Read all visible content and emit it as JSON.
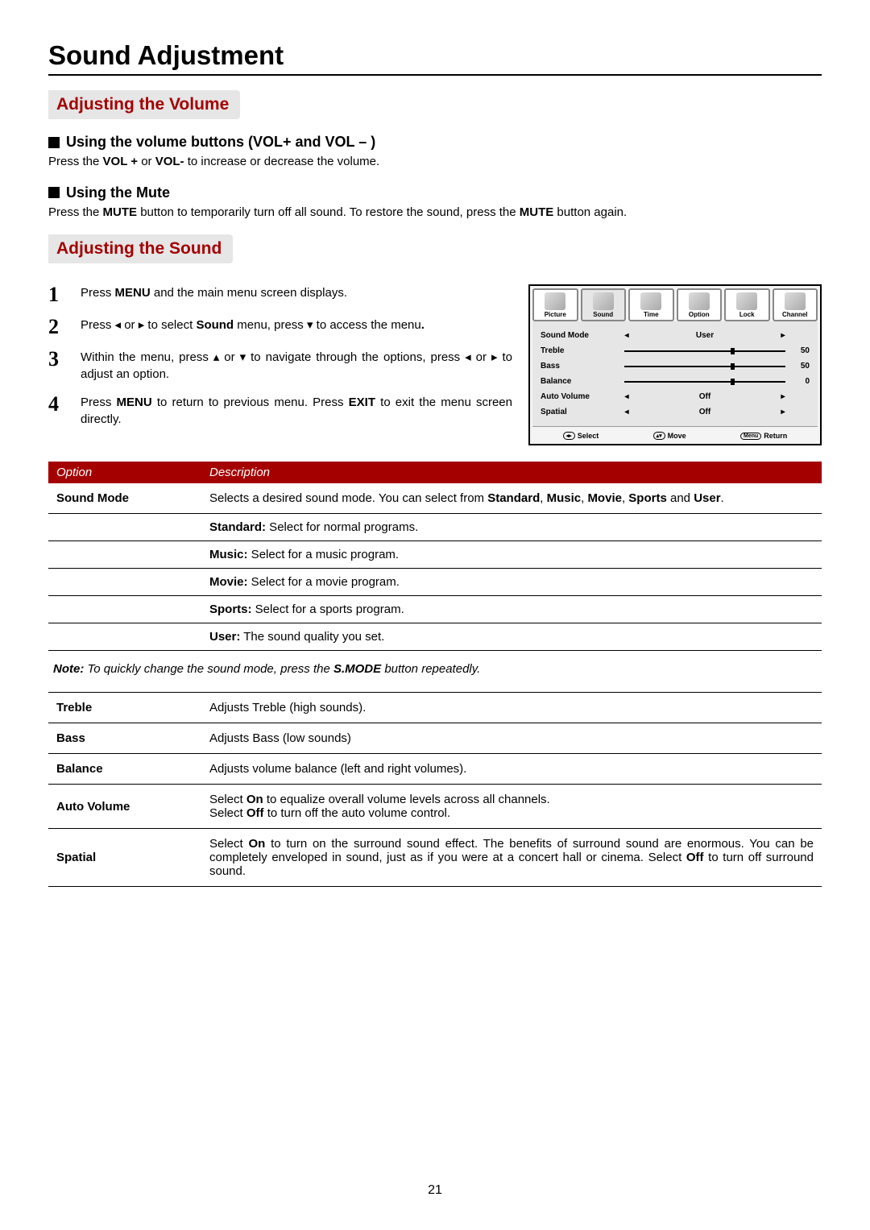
{
  "page_number": "21",
  "title": "Sound Adjustment",
  "section1": {
    "heading": "Adjusting the Volume",
    "sub1_title": "Using the volume buttons (VOL+ and VOL – )",
    "sub1_text_a": "Press the ",
    "sub1_bold_a": "VOL +",
    "sub1_text_b": " or ",
    "sub1_bold_b": "VOL-",
    "sub1_text_c": " to increase or decrease the volume.",
    "sub2_title": "Using the Mute",
    "sub2_text_a": "Press the ",
    "sub2_bold_a": "MUTE",
    "sub2_text_b": " button to temporarily turn off all sound.   To restore the sound, press the ",
    "sub2_bold_b": "MUTE",
    "sub2_text_c": " button again."
  },
  "section2": {
    "heading": "Adjusting the Sound",
    "steps": [
      {
        "num": "1",
        "pre": "Press ",
        "bold": "MENU",
        "post": " and the main menu screen displays."
      },
      {
        "num": "2",
        "raw": "Press ◂ or ▸ to select <b>Sound</b> menu,  press ▾ to access the menu<b>.</b>"
      },
      {
        "num": "3",
        "raw": "Within the menu, press ▴ or ▾ to navigate through the options, press ◂ or ▸ to adjust an option."
      },
      {
        "num": "4",
        "raw": "Press <b>MENU</b> to return to previous menu. Press <b>EXIT</b> to exit the menu screen directly."
      }
    ]
  },
  "osd": {
    "tabs": [
      "Picture",
      "Sound",
      "Time",
      "Option",
      "Lock",
      "Channel"
    ],
    "rows": [
      {
        "label": "Sound Mode",
        "type": "sel",
        "value": "User"
      },
      {
        "label": "Treble",
        "type": "slider",
        "pos": 66,
        "num": "50"
      },
      {
        "label": "Bass",
        "type": "slider",
        "pos": 66,
        "num": "50"
      },
      {
        "label": "Balance",
        "type": "slider",
        "pos": 66,
        "num": "0"
      },
      {
        "label": "Auto Volume",
        "type": "sel",
        "value": "Off"
      },
      {
        "label": "Spatial",
        "type": "sel",
        "value": "Off"
      }
    ],
    "footer": {
      "select": "Select",
      "move": "Move",
      "return": "Return",
      "menu": "Menu"
    }
  },
  "table": {
    "h1": "Option",
    "h2": "Description",
    "sound_mode": {
      "name": "Sound Mode",
      "desc": "Selects a desired sound mode.  You can select from <b>Standard</b>, <b>Music</b>, <b>Movie</b>, <b>Sports</b> and <b>User</b>.",
      "subs": [
        "<b>Standard:</b> Select for normal programs.",
        "<b>Music:</b> Select for a music program.",
        "<b>Movie:</b> Select for a movie program.",
        "<b>Sports:</b> Select for a sports program.",
        "<b>User:</b> The sound quality you set."
      ]
    },
    "note": "<b>Note:</b> To quickly change the sound mode, press the <b>S.MODE</b> button repeatedly.",
    "rows": [
      {
        "name": "Treble",
        "desc": "Adjusts Treble (high sounds)."
      },
      {
        "name": "Bass",
        "desc": "Adjusts Bass (low sounds)"
      },
      {
        "name": "Balance",
        "desc": "Adjusts volume balance (left and right volumes)."
      },
      {
        "name": "Auto Volume",
        "desc": "Select <b>On</b> to equalize overall volume levels across all channels.<br>Select <b>Off</b> to turn off the auto volume control."
      },
      {
        "name": "Spatial",
        "desc": "Select <b>On</b> to turn on the surround sound effect. The benefits of surround sound are enormous. You can be completely enveloped in sound, just as if you were at a concert hall or cinema. Select <b>Off</b> to turn off surround sound."
      }
    ]
  },
  "colors": {
    "accent": "#a40000",
    "label_bg": "#e6e6e6",
    "text": "#000000"
  }
}
